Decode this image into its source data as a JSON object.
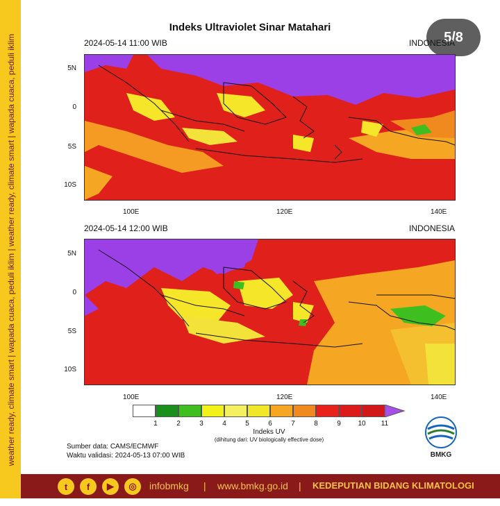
{
  "sidebar_text": "weather ready, climate smart  |  wapada cuaca, peduli iklim  |  weather ready, climate smart  |  wapada cuaca, peduli iklim",
  "title": "Indeks Ultraviolet Sinar Matahari",
  "page_indicator": "5/8",
  "maps": [
    {
      "datetime": "2024-05-14  11:00 WIB",
      "region": "INDONESIA"
    },
    {
      "datetime": "2024-05-14  12:00 WIB",
      "region": "INDONESIA"
    }
  ],
  "lat_labels": [
    "5N",
    "0",
    "5S",
    "10S"
  ],
  "lon_labels": [
    "100E",
    "120E",
    "140E"
  ],
  "colorbar": {
    "ticks": [
      "1",
      "2",
      "3",
      "4",
      "5",
      "6",
      "7",
      "8",
      "9",
      "10",
      "11"
    ],
    "colors": [
      "#ffffff",
      "#1a8f1a",
      "#3fbf1f",
      "#f2f21a",
      "#f5f060",
      "#f0e62a",
      "#f5a623",
      "#f08a1e",
      "#e8221a",
      "#dd1a1a",
      "#d0181a",
      "#a64ee8"
    ],
    "title": "Indeks UV",
    "subtitle": "(dihitung dari: UV biologically effective dose)"
  },
  "source": {
    "line1": "Sumber data: CAMS/ECMWF",
    "line2": "Waktu validasi: 2024-05-13 07:00 WIB"
  },
  "logo_text": "BMKG",
  "footer": {
    "social": [
      "t",
      "f",
      "▶",
      "◎"
    ],
    "handle": "infobmkg",
    "sep": "|",
    "website": "www.bmkg.go.id",
    "division": "KEDEPUTIAN BIDANG KLIMATOLOGI"
  }
}
